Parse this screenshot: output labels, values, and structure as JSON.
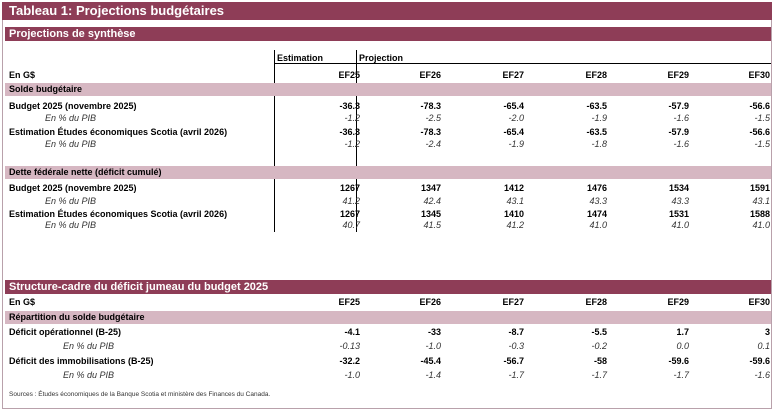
{
  "title": "Tableau 1: Projections budgétaires",
  "section1": {
    "heading": "Projections de synthèse",
    "estimation_label": "Estimation",
    "projection_label": "Projection",
    "unit_label": "En G$",
    "years": [
      "EF25",
      "EF26",
      "EF27",
      "EF28",
      "EF29",
      "EF30"
    ],
    "solde_heading": "Solde budgétaire",
    "solde_rows": [
      {
        "label": "Budget 2025 (novembre 2025)",
        "values": [
          "-36.3",
          "-78.3",
          "-65.4",
          "-63.5",
          "-57.9",
          "-56.6"
        ]
      },
      {
        "label": "En % du PIB",
        "values": [
          "-1.2",
          "-2.5",
          "-2.0",
          "-1.9",
          "-1.6",
          "-1.5"
        ]
      },
      {
        "label": "Estimation Études économiques Scotia (avril 2026)",
        "values": [
          "-36.3",
          "-78.3",
          "-65.4",
          "-63.5",
          "-57.9",
          "-56.6"
        ]
      },
      {
        "label": "En % du PIB",
        "values": [
          "-1.2",
          "-2.4",
          "-1.9",
          "-1.8",
          "-1.6",
          "-1.5"
        ]
      }
    ],
    "dette_heading": "Dette fédérale nette (déficit cumulé)",
    "dette_rows": [
      {
        "label": "Budget 2025 (novembre 2025)",
        "values": [
          "1267",
          "1347",
          "1412",
          "1476",
          "1534",
          "1591"
        ]
      },
      {
        "label": "En % du PIB",
        "values": [
          "41.2",
          "42.4",
          "43.1",
          "43.3",
          "43.3",
          "43.1"
        ]
      },
      {
        "label": "Estimation Études économiques Scotia (avril 2026)",
        "values": [
          "1267",
          "1345",
          "1410",
          "1474",
          "1531",
          "1588"
        ]
      },
      {
        "label": "En % du PIB",
        "values": [
          "40.7",
          "41.5",
          "41.2",
          "41.0",
          "41.0",
          "41.0"
        ]
      }
    ]
  },
  "section2": {
    "heading": "Structure-cadre du déficit jumeau du budget 2025",
    "unit_label": "En G$",
    "years": [
      "EF25",
      "EF26",
      "EF27",
      "EF28",
      "EF29",
      "EF30"
    ],
    "sub_heading": "Répartition du solde budgétaire",
    "rows": [
      {
        "label": "Déficit opérationnel (B-25)",
        "values": [
          "-4.1",
          "-33",
          "-8.7",
          "-5.5",
          "1.7",
          "3"
        ]
      },
      {
        "label": "En % du PIB",
        "values": [
          "-0.13",
          "-1.0",
          "-0.3",
          "-0.2",
          "0.0",
          "0.1"
        ]
      },
      {
        "label": "Déficit des immobilisations (B-25)",
        "values": [
          "-32.2",
          "-45.4",
          "-56.7",
          "-58",
          "-59.6",
          "-59.6"
        ]
      },
      {
        "label": "En % du PIB",
        "values": [
          "-1.0",
          "-1.4",
          "-1.7",
          "-1.7",
          "-1.7",
          "-1.6"
        ]
      }
    ]
  },
  "source": "Sources : Études économiques de la Banque Scotia et ministère des Finances du Canada."
}
